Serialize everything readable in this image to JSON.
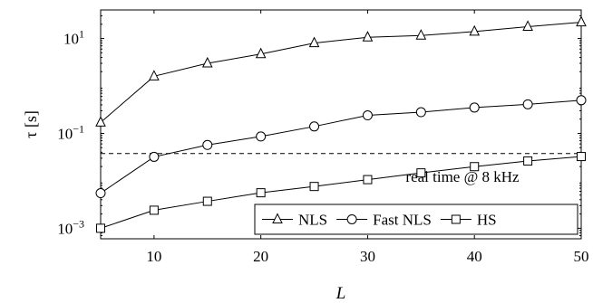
{
  "chart_data": {
    "type": "line",
    "xlabel": "L",
    "ylabel": "τ [s]",
    "x": [
      5,
      10,
      15,
      20,
      25,
      30,
      35,
      40,
      45,
      50
    ],
    "xlim": [
      5,
      50
    ],
    "ylim": [
      0.0006,
      40
    ],
    "yscale": "log",
    "xticks": [
      10,
      20,
      30,
      40,
      50
    ],
    "yticks": [
      {
        "value": 0.001,
        "base": "10",
        "exp": "−3"
      },
      {
        "value": 0.1,
        "base": "10",
        "exp": "−1"
      },
      {
        "value": 10,
        "base": "10",
        "exp": "1"
      }
    ],
    "grid": false,
    "legend_position": "bottom-right",
    "series": [
      {
        "name": "NLS",
        "marker": "triangle",
        "values": [
          0.17,
          1.6,
          3.0,
          4.7,
          8.0,
          10.6,
          11.6,
          14.0,
          17.8,
          22.0
        ]
      },
      {
        "name": "Fast NLS",
        "marker": "circle",
        "values": [
          0.0055,
          0.032,
          0.057,
          0.086,
          0.14,
          0.24,
          0.28,
          0.35,
          0.41,
          0.5
        ]
      },
      {
        "name": "HS",
        "marker": "square",
        "values": [
          0.001,
          0.0024,
          0.0037,
          0.0056,
          0.0076,
          0.0106,
          0.0147,
          0.0199,
          0.0262,
          0.0325
        ]
      }
    ],
    "reference_line": {
      "y": 0.0375,
      "label": "real time @ 8 kHz"
    }
  }
}
